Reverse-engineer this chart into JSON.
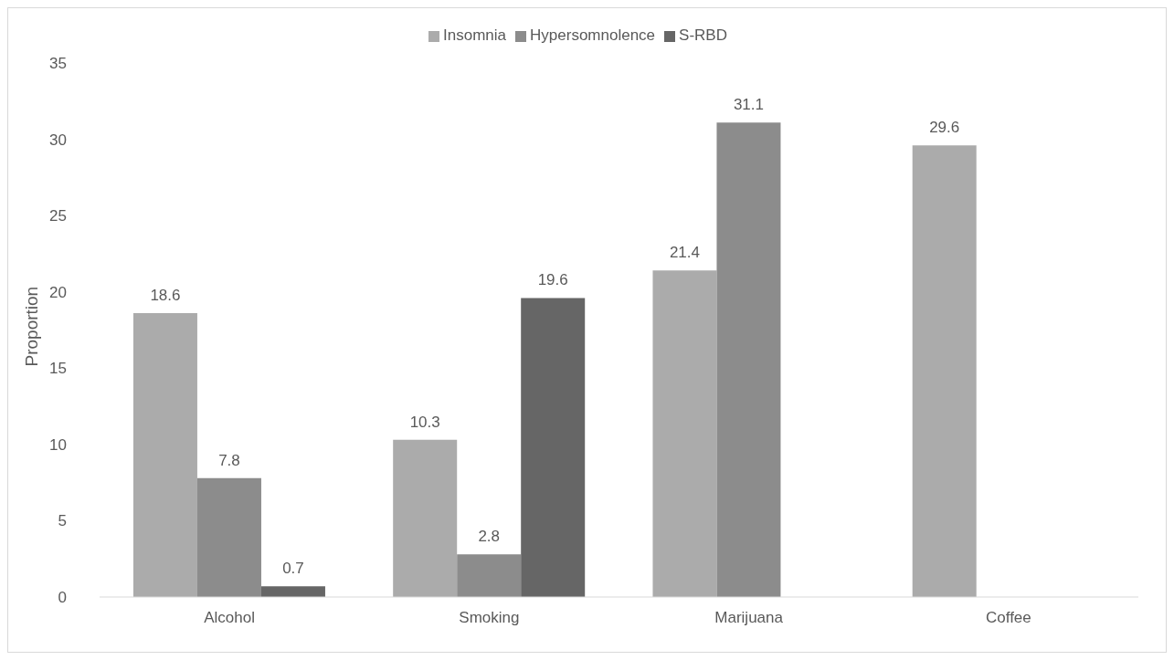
{
  "chart_data": {
    "type": "bar",
    "ylabel": "Proportion",
    "categories": [
      "Alcohol",
      "Smoking",
      "Marijuana",
      "Coffee"
    ],
    "series": [
      {
        "name": "Insomnia",
        "color": "#ababab",
        "values": [
          18.6,
          10.3,
          21.4,
          29.6
        ]
      },
      {
        "name": "Hypersomnolence",
        "color": "#8c8c8c",
        "values": [
          7.8,
          2.8,
          31.1,
          null
        ]
      },
      {
        "name": "S-RBD",
        "color": "#666666",
        "values": [
          0.7,
          19.6,
          null,
          null
        ]
      }
    ],
    "ylim": [
      0,
      35
    ],
    "yticks": [
      0,
      5,
      10,
      15,
      20,
      25,
      30,
      35
    ],
    "grid": false,
    "legend": "top",
    "data_labels": true
  }
}
